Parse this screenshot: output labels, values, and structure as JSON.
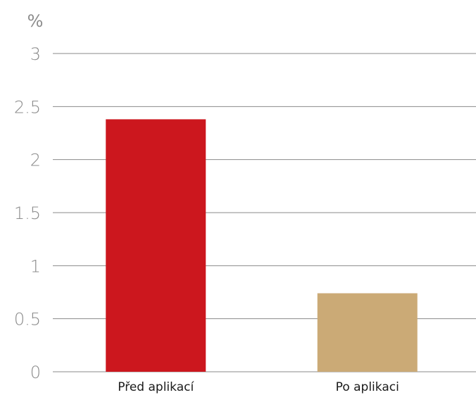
{
  "chart_data": {
    "type": "bar",
    "title": "",
    "xlabel": "",
    "ylabel": "%",
    "ylim": [
      0,
      3
    ],
    "y_ticks": [
      "0",
      "0.5",
      "1",
      "1.5",
      "2",
      "2.5",
      "3"
    ],
    "grid": true,
    "legend": "none",
    "categories": [
      "Před aplikací",
      "Po aplikaci"
    ],
    "values": [
      2.38,
      0.74
    ],
    "colors": [
      "#cc171e",
      "#cbaa76"
    ]
  }
}
